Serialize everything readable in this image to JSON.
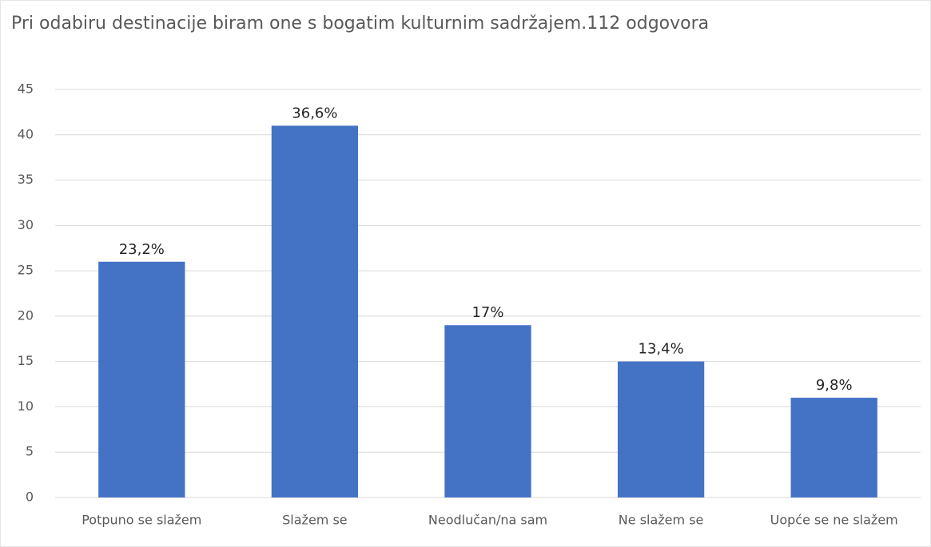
{
  "chart_data": {
    "type": "bar",
    "title": "Pri odabiru destinacije biram one s bogatim kulturnim sadržajem.112 odgovora",
    "categories": [
      "Potpuno se slažem",
      "Slažem se",
      "Neodlučan/na sam",
      "Ne slažem se",
      "Uopće se ne slažem"
    ],
    "values": [
      26,
      41,
      19,
      15,
      11
    ],
    "value_labels": [
      "23,2%",
      "36,6%",
      "17%",
      "13,4%",
      "9,8%"
    ],
    "color": "#4472c4",
    "ylim": [
      0,
      45
    ],
    "yticks": [
      0,
      5,
      10,
      15,
      20,
      25,
      30,
      35,
      40,
      45
    ],
    "grid": true
  }
}
